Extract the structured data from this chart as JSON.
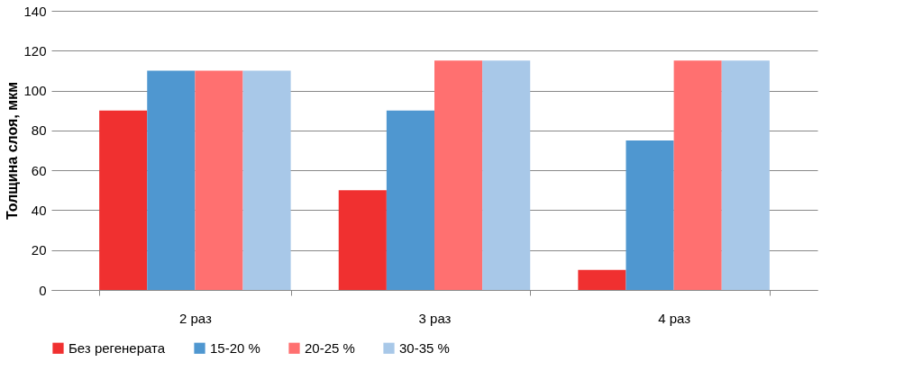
{
  "chart_data": {
    "type": "bar",
    "ylabel": "Толщина слоя, мкм",
    "categories": [
      "2 раз",
      "3 раз",
      "4 раз"
    ],
    "series": [
      {
        "name": "Без регенерата",
        "color": "#f03030",
        "values": [
          90,
          50,
          10
        ]
      },
      {
        "name": "15-20 %",
        "color": "#4f97d0",
        "values": [
          110,
          90,
          75
        ]
      },
      {
        "name": "20-25 %",
        "color": "#ff7070",
        "values": [
          110,
          115,
          115
        ]
      },
      {
        "name": "30-35 %",
        "color": "#a8c8e8",
        "values": [
          110,
          115,
          115
        ]
      }
    ],
    "ylim": [
      0,
      140
    ],
    "yticks": [
      0,
      20,
      40,
      60,
      80,
      100,
      120,
      140
    ],
    "grid": "y",
    "legend": "bottom"
  }
}
